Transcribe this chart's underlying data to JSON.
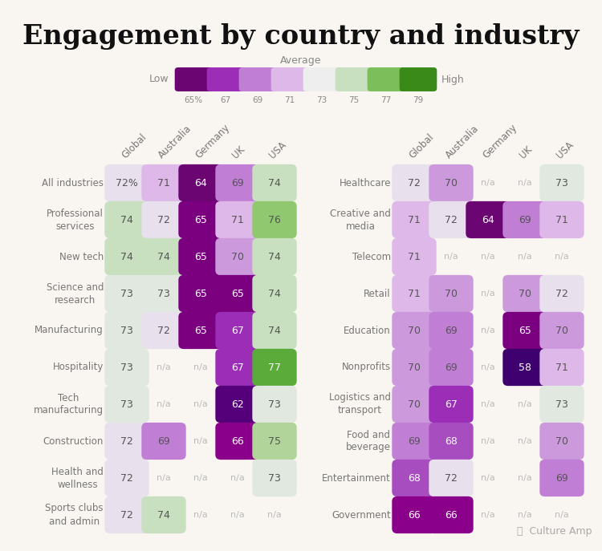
{
  "title": "Engagement by country and industry",
  "background_color": "#f9f5f0",
  "left_table": {
    "rows": [
      "All industries",
      "Professional\nservices",
      "New tech",
      "Science and\nresearch",
      "Manufacturing",
      "Hospitality",
      "Tech\nmanufacturing",
      "Construction",
      "Health and\nwellness",
      "Sports clubs\nand admin"
    ],
    "columns": [
      "Global",
      "Australia",
      "Germany",
      "UK",
      "USA"
    ],
    "data": [
      [
        "72%",
        "71",
        "64",
        "69",
        "74"
      ],
      [
        "74",
        "72",
        "65",
        "71",
        "76"
      ],
      [
        "74",
        "74",
        "65",
        "70",
        "74"
      ],
      [
        "73",
        "73",
        "65",
        "65",
        "74"
      ],
      [
        "73",
        "72",
        "65",
        "67",
        "74"
      ],
      [
        "73",
        "n/a",
        "n/a",
        "67",
        "77"
      ],
      [
        "73",
        "n/a",
        "n/a",
        "62",
        "73"
      ],
      [
        "72",
        "69",
        "n/a",
        "66",
        "75"
      ],
      [
        "72",
        "n/a",
        "n/a",
        "n/a",
        "73"
      ],
      [
        "72",
        "74",
        "n/a",
        "n/a",
        "n/a"
      ]
    ]
  },
  "right_table": {
    "rows": [
      "Healthcare",
      "Creative and\nmedia",
      "Telecom",
      "Retail",
      "Education",
      "Nonprofits",
      "Logistics and\ntransport",
      "Food and\nbeverage",
      "Entertainment",
      "Government"
    ],
    "columns": [
      "Global",
      "Australia",
      "Germany",
      "UK",
      "USA"
    ],
    "data": [
      [
        "72",
        "70",
        "n/a",
        "n/a",
        "73"
      ],
      [
        "71",
        "72",
        "64",
        "69",
        "71"
      ],
      [
        "71",
        "n/a",
        "n/a",
        "n/a",
        "n/a"
      ],
      [
        "71",
        "70",
        "n/a",
        "70",
        "72"
      ],
      [
        "70",
        "69",
        "n/a",
        "65",
        "70"
      ],
      [
        "70",
        "69",
        "n/a",
        "58",
        "71"
      ],
      [
        "70",
        "67",
        "n/a",
        "n/a",
        "73"
      ],
      [
        "69",
        "68",
        "n/a",
        "n/a",
        "70"
      ],
      [
        "68",
        "72",
        "n/a",
        "n/a",
        "69"
      ],
      [
        "66",
        "66",
        "n/a",
        "n/a",
        "n/a"
      ]
    ]
  },
  "color_stops": [
    [
      58,
      "#3d006e"
    ],
    [
      62,
      "#55007a"
    ],
    [
      64,
      "#6a0572"
    ],
    [
      65,
      "#7a0080"
    ],
    [
      66,
      "#8b008b"
    ],
    [
      67,
      "#9b2db7"
    ],
    [
      68,
      "#a84dbf"
    ],
    [
      69,
      "#c07fd4"
    ],
    [
      70,
      "#cc99dd"
    ],
    [
      71,
      "#ddb8e8"
    ],
    [
      72,
      "#e8e0ec"
    ],
    [
      73,
      "#e0e8e0"
    ],
    [
      74,
      "#c8dfc0"
    ],
    [
      75,
      "#b0d49a"
    ],
    [
      76,
      "#90c870"
    ],
    [
      77,
      "#5aab3a"
    ],
    [
      79,
      "#3a8a1a"
    ]
  ],
  "colorbar_colors": [
    "#6a0572",
    "#9b2db7",
    "#c07fd4",
    "#ddb8e8",
    "#eeeeee",
    "#c8dfc0",
    "#7cbf5a",
    "#3a8a1a"
  ],
  "colorbar_ticks": [
    "65%",
    "67",
    "69",
    "71",
    "73",
    "75",
    "77",
    "79"
  ]
}
